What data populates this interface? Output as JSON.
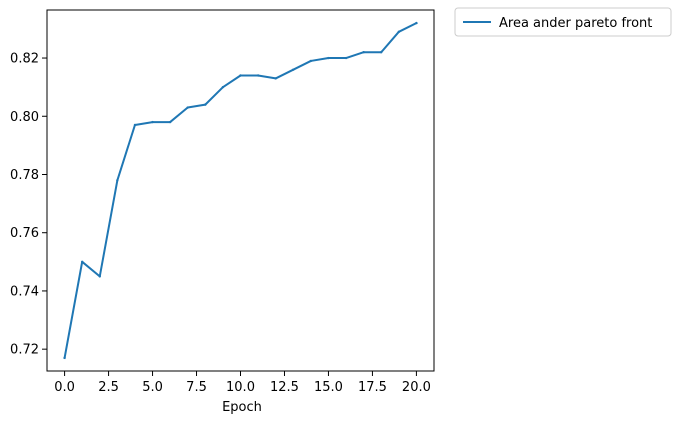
{
  "chart_data": {
    "type": "line",
    "title": "",
    "xlabel": "Epoch",
    "ylabel": "",
    "xlim": [
      -1.0,
      21.0
    ],
    "ylim": [
      0.7125,
      0.8365
    ],
    "xticks": [
      0.0,
      2.5,
      5.0,
      7.5,
      10.0,
      12.5,
      15.0,
      17.5,
      20.0
    ],
    "xtick_labels": [
      "0.0",
      "2.5",
      "5.0",
      "7.5",
      "10.0",
      "12.5",
      "15.0",
      "17.5",
      "20.0"
    ],
    "yticks": [
      0.72,
      0.74,
      0.76,
      0.78,
      0.8,
      0.82
    ],
    "ytick_labels": [
      "0.72",
      "0.74",
      "0.76",
      "0.78",
      "0.80",
      "0.82"
    ],
    "grid": false,
    "legend_position": "outside-top-right",
    "colors": {
      "series": "#1f77b4",
      "axes": "#000000",
      "legend_border": "#cccccc"
    },
    "x": [
      0,
      1,
      2,
      3,
      4,
      5,
      6,
      7,
      8,
      9,
      10,
      11,
      12,
      13,
      14,
      15,
      16,
      17,
      18,
      19,
      20
    ],
    "series": [
      {
        "name": "Area ander pareto front",
        "values": [
          0.717,
          0.75,
          0.745,
          0.778,
          0.797,
          0.798,
          0.798,
          0.803,
          0.804,
          0.81,
          0.814,
          0.814,
          0.813,
          0.816,
          0.819,
          0.82,
          0.82,
          0.822,
          0.822,
          0.829,
          0.832
        ]
      }
    ]
  }
}
